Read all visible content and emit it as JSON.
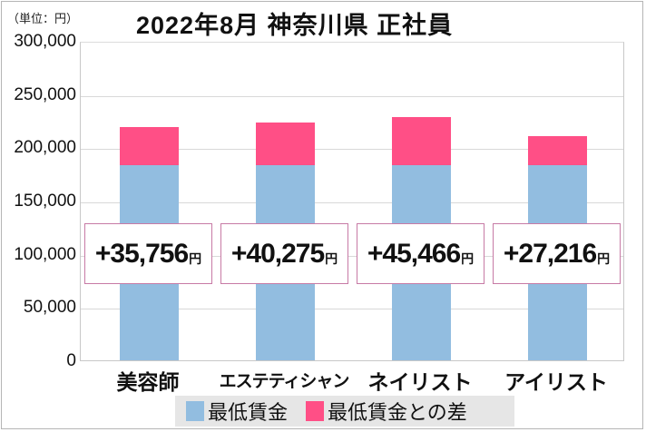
{
  "chart_data": {
    "type": "bar",
    "stacked": true,
    "title": "2022年8月 神奈川県 正社員",
    "unit_label": "（単位：円）",
    "xlabel": "",
    "ylabel": "",
    "ylim": [
      0,
      300000
    ],
    "yticks": [
      "300,000",
      "250,000",
      "200,000",
      "150,000",
      "100,000",
      "50,000",
      "0"
    ],
    "ytick_values": [
      300000,
      250000,
      200000,
      150000,
      100000,
      50000,
      0
    ],
    "grid": true,
    "legend_position": "bottom",
    "categories": [
      "美容師",
      "エステティシャン",
      "ネイリスト",
      "アイリスト"
    ],
    "series": [
      {
        "name": "最低賃金",
        "color": "#92bde0",
        "values": [
          183040,
          183040,
          183040,
          183040
        ]
      },
      {
        "name": "最低賃金との差",
        "color": "#ff4f86",
        "values": [
          35756,
          40275,
          45466,
          27216
        ]
      }
    ],
    "annotations": [
      {
        "text": "+35,756",
        "suffix": "円"
      },
      {
        "text": "+40,275",
        "suffix": "円"
      },
      {
        "text": "+45,466",
        "suffix": "円"
      },
      {
        "text": "+27,216",
        "suffix": "円"
      }
    ]
  }
}
